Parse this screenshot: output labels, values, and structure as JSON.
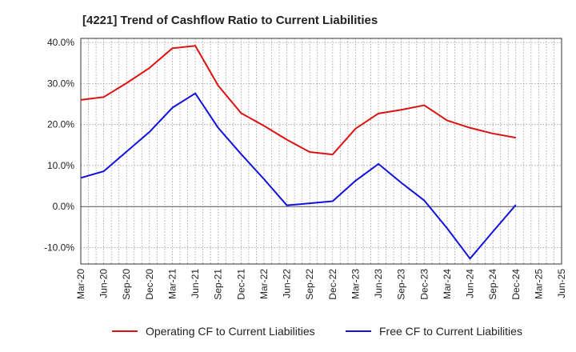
{
  "chart_data": {
    "type": "line",
    "title": "[4221]  Trend of Cashflow Ratio to Current Liabilities",
    "xlabel": "",
    "ylabel": "",
    "x": [
      "Mar-20",
      "Jun-20",
      "Sep-20",
      "Dec-20",
      "Mar-21",
      "Jun-21",
      "Sep-21",
      "Dec-21",
      "Mar-22",
      "Jun-22",
      "Sep-22",
      "Dec-22",
      "Mar-23",
      "Jun-23",
      "Sep-23",
      "Dec-23",
      "Mar-24",
      "Jun-24",
      "Sep-24",
      "Dec-24",
      "Mar-25",
      "Jun-25"
    ],
    "ylim": [
      -14,
      41
    ],
    "yticks": [
      -10,
      0,
      10,
      20,
      30,
      40
    ],
    "ytick_labels": [
      "-10.0%",
      "0.0%",
      "10.0%",
      "20.0%",
      "30.0%",
      "40.0%"
    ],
    "grid": true,
    "legend_position": "bottom",
    "series": [
      {
        "name": "Operating CF to Current Liabilities",
        "color": "#dd1111",
        "values": [
          26.0,
          26.7,
          30.1,
          33.8,
          38.6,
          39.2,
          29.5,
          22.8,
          19.7,
          16.3,
          13.3,
          12.7,
          19.0,
          22.7,
          23.6,
          24.7,
          21.0,
          19.2,
          17.8,
          16.8,
          null,
          null
        ]
      },
      {
        "name": "Free CF to Current Liabilities",
        "color": "#1111dd",
        "values": [
          7.0,
          8.6,
          13.4,
          18.2,
          24.1,
          27.6,
          19.2,
          12.8,
          6.7,
          0.3,
          0.8,
          1.3,
          6.3,
          10.4,
          5.8,
          1.5,
          -5.3,
          -12.7,
          -6.1,
          0.4,
          null,
          null
        ]
      }
    ]
  }
}
